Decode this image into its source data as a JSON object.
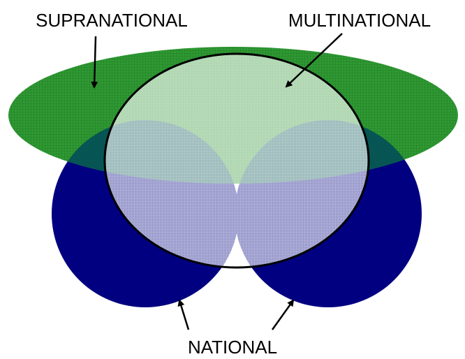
{
  "labels": {
    "supranational": "SUPRANATIONAL",
    "multinational": "MULTINATIONAL",
    "national": "NATIONAL"
  }
}
